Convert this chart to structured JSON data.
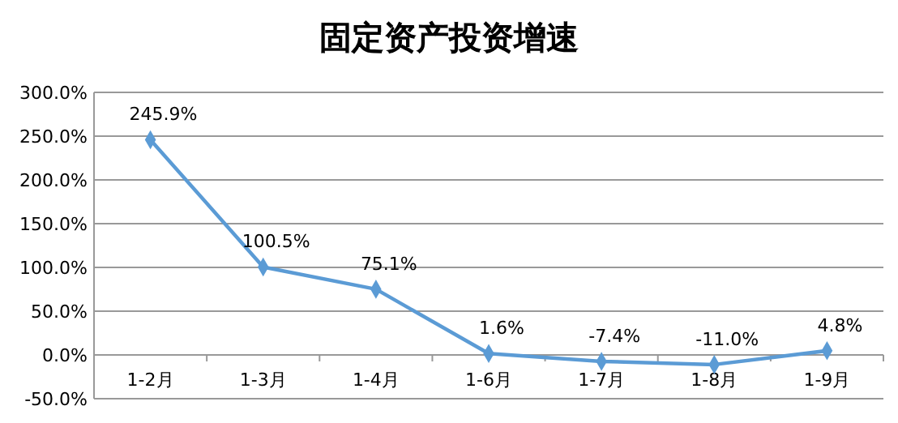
{
  "chart_data": {
    "type": "line",
    "title": "固定资产投资增速",
    "categories": [
      "1-2月",
      "1-3月",
      "1-4月",
      "1-6月",
      "1-7月",
      "1-8月",
      "1-9月"
    ],
    "series": [
      {
        "color": "#5b9bd5",
        "values": [
          245.9,
          100.5,
          75.1,
          1.6,
          -7.4,
          -11.0,
          4.8
        ],
        "value_labels": [
          "245.9%",
          "100.5%",
          "75.1%",
          "1.6%",
          "-7.4%",
          "-11.0%",
          "4.8%"
        ]
      }
    ],
    "ylim": [
      -50,
      300
    ],
    "yticks": [
      {
        "value": -50,
        "label": "-50.0%"
      },
      {
        "value": 0,
        "label": "0.0%"
      },
      {
        "value": 50,
        "label": "50.0%"
      },
      {
        "value": 100,
        "label": "100.0%"
      },
      {
        "value": 150,
        "label": "150.0%"
      },
      {
        "value": 200,
        "label": "200.0%"
      },
      {
        "value": 250,
        "label": "250.0%"
      },
      {
        "value": 300,
        "label": "300.0%"
      }
    ],
    "grid": "y",
    "marker": "diamond",
    "line_style": "solid"
  }
}
